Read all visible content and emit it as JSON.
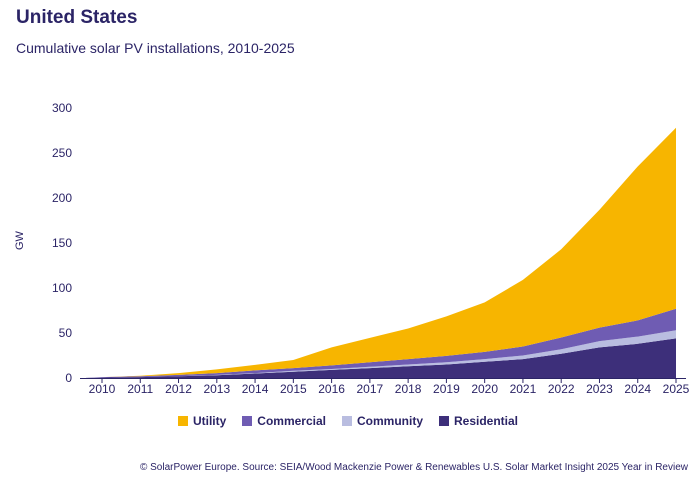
{
  "header": {
    "title": "United States",
    "subtitle": "Cumulative solar PV installations, 2010-2025"
  },
  "source": "© SolarPower Europe. Source: SEIA/Wood Mackenzie Power & Renewables U.S. Solar Market Insight 2025 Year in Review",
  "chart_data": {
    "type": "area",
    "stacked": true,
    "title": "Cumulative solar PV installations, 2010-2025",
    "xlabel": "",
    "ylabel": "GW",
    "x": [
      "2010",
      "2011",
      "2012",
      "2013",
      "2014",
      "2015",
      "2016",
      "2017",
      "2018",
      "2019",
      "2020",
      "2021",
      "2022",
      "2023",
      "2024",
      "2025"
    ],
    "ylim": [
      0,
      300
    ],
    "yticks": [
      0,
      50,
      100,
      150,
      200,
      250,
      300
    ],
    "grid": false,
    "legend_position": "bottom",
    "series": [
      {
        "name": "Residential",
        "color": "#3d2f7a",
        "values": [
          0.5,
          1,
          2,
          3,
          5,
          7,
          9,
          11,
          13,
          15,
          18,
          21,
          27,
          34,
          38,
          44
        ]
      },
      {
        "name": "Community",
        "color": "#b9bde0",
        "values": [
          0,
          0,
          0,
          0.5,
          0.5,
          1,
          1,
          1.5,
          2,
          2.5,
          3,
          4,
          5,
          7,
          8,
          9
        ]
      },
      {
        "name": "Commercial",
        "color": "#6f5cb3",
        "values": [
          0.5,
          1,
          1.5,
          2,
          3,
          3,
          4,
          5,
          6,
          7,
          8,
          10,
          13,
          15,
          18,
          24
        ]
      },
      {
        "name": "Utility",
        "color": "#f7b500",
        "values": [
          0,
          0.5,
          2,
          4,
          6,
          9,
          20,
          27,
          34,
          44,
          55,
          74,
          98,
          131,
          171,
          201
        ]
      }
    ],
    "legend_order": [
      "Utility",
      "Commercial",
      "Community",
      "Residential"
    ]
  }
}
